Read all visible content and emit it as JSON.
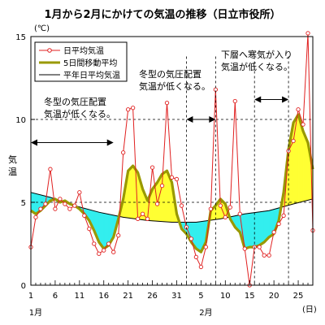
{
  "chart_data": {
    "type": "line",
    "title": "1月から2月にかけての気温の推移（日立市役所）",
    "ylabel_chars": [
      "気",
      "温"
    ],
    "yunit": "(℃)",
    "xunit": "(日)",
    "ylim": [
      0,
      15
    ],
    "yticks": [
      0,
      5,
      10,
      15
    ],
    "dashed_y": [
      5,
      10
    ],
    "xlim": [
      1,
      59
    ],
    "xticks": [
      {
        "day": 1,
        "label": "1"
      },
      {
        "day": 6,
        "label": "6"
      },
      {
        "day": 11,
        "label": "11"
      },
      {
        "day": 16,
        "label": "16"
      },
      {
        "day": 21,
        "label": "21"
      },
      {
        "day": 26,
        "label": "26"
      },
      {
        "day": 31,
        "label": "31"
      },
      {
        "day": 36,
        "label": "5"
      },
      {
        "day": 41,
        "label": "10"
      },
      {
        "day": 46,
        "label": "15"
      },
      {
        "day": 51,
        "label": "20"
      },
      {
        "day": 56,
        "label": "25"
      }
    ],
    "month_labels": [
      {
        "day": 2,
        "label": "1月"
      },
      {
        "day": 37,
        "label": "2月"
      }
    ],
    "legend": {
      "position": "top-left",
      "items": [
        {
          "key": "daily",
          "label": "日平均気温"
        },
        {
          "key": "ma5",
          "label": "5日間移動平均"
        },
        {
          "key": "normal",
          "label": "平年日平均気温"
        }
      ]
    },
    "colors": {
      "daily": "#e02020",
      "ma5": "#999900",
      "normal": "#000000",
      "warm_fill": "#ffff33",
      "cold_fill": "#33eeee"
    },
    "series": [
      {
        "key": "daily",
        "name": "日平均気温",
        "x": [
          1,
          2,
          3,
          4,
          5,
          6,
          7,
          8,
          9,
          10,
          11,
          12,
          13,
          14,
          15,
          16,
          17,
          18,
          19,
          20,
          21,
          22,
          23,
          24,
          25,
          26,
          27,
          28,
          29,
          30,
          31,
          32,
          33,
          34,
          35,
          36,
          37,
          38,
          39,
          40,
          41,
          42,
          43,
          44,
          45,
          46,
          47,
          48,
          49,
          50,
          51,
          52,
          53,
          54,
          55,
          56,
          57,
          58,
          59
        ],
        "y": [
          2.3,
          4.1,
          4.6,
          4.9,
          7.0,
          4.6,
          5.2,
          4.9,
          4.6,
          4.8,
          5.6,
          4.2,
          3.4,
          2.5,
          1.9,
          2.1,
          2.5,
          2.0,
          3.0,
          8.0,
          10.6,
          10.7,
          4.0,
          4.3,
          4.0,
          7.1,
          4.9,
          6.0,
          11.0,
          6.5,
          6.4,
          4.8,
          3.5,
          2.8,
          1.7,
          1.1,
          2.3,
          4.6,
          11.8,
          4.8,
          4.1,
          4.7,
          11.1,
          4.3,
          2.2,
          0.0,
          2.3,
          2.3,
          1.8,
          1.8,
          3.2,
          3.7,
          4.2,
          8.1,
          8.7,
          10.6,
          9.7,
          15.2,
          3.3
        ]
      },
      {
        "key": "ma5",
        "name": "5日間移動平均",
        "x": [
          1,
          2,
          3,
          4,
          5,
          6,
          7,
          8,
          9,
          10,
          11,
          12,
          13,
          14,
          15,
          16,
          17,
          18,
          19,
          20,
          21,
          22,
          23,
          24,
          25,
          26,
          27,
          28,
          29,
          30,
          31,
          32,
          33,
          34,
          35,
          36,
          37,
          38,
          39,
          40,
          41,
          42,
          43,
          44,
          45,
          46,
          47,
          48,
          49,
          50,
          51,
          52,
          53,
          54,
          55,
          56,
          57,
          58,
          59
        ],
        "y": [
          4.5,
          4.3,
          4.5,
          4.8,
          5.1,
          5.2,
          5.0,
          5.1,
          4.9,
          4.8,
          4.6,
          4.3,
          3.9,
          3.3,
          2.6,
          2.2,
          2.4,
          2.9,
          4.0,
          5.2,
          6.9,
          7.2,
          6.8,
          5.8,
          5.1,
          5.8,
          6.2,
          6.7,
          6.9,
          6.2,
          4.3,
          3.4,
          3.1,
          2.6,
          2.2,
          2.0,
          2.6,
          4.5,
          4.8,
          5.2,
          4.9,
          4.0,
          3.5,
          3.2,
          2.2,
          2.3,
          2.3,
          2.4,
          2.6,
          2.9,
          3.1,
          3.9,
          5.6,
          8.2,
          9.8,
          10.3,
          9.3,
          8.6,
          7.0
        ]
      },
      {
        "key": "normal",
        "name": "平年日平均気温",
        "x": [
          1,
          5,
          10,
          15,
          20,
          25,
          30,
          35,
          40,
          45,
          50,
          55,
          59
        ],
        "y": [
          5.6,
          5.3,
          4.8,
          4.4,
          4.1,
          3.9,
          3.8,
          3.8,
          4.0,
          4.3,
          4.5,
          4.9,
          5.2
        ]
      }
    ],
    "annotations": [
      {
        "text": [
          "冬型の気圧配置",
          "気温が低くなる。"
        ],
        "arrow": [
          1,
          18
        ],
        "arrow_y": 8.6
      },
      {
        "text": [
          "冬型の気圧配置",
          "気温が低くなる。"
        ],
        "arrow": [
          33,
          39
        ],
        "arrow_y": 10.0
      },
      {
        "text": [
          "下層へ寒気が入り",
          "気温が低くなる。"
        ],
        "arrow": [
          47,
          54
        ],
        "arrow_y": 11.2
      }
    ]
  }
}
